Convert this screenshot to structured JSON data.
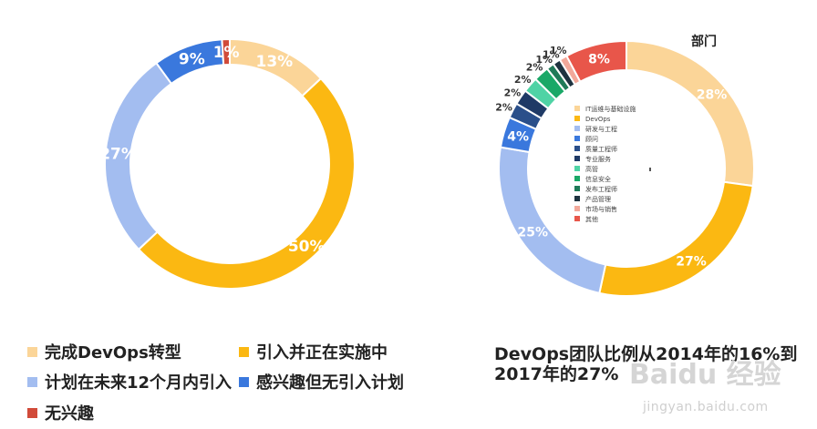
{
  "chart_data": [
    {
      "type": "pie",
      "donut": true,
      "categories": [
        "完成DevOps转型",
        "引入并正在实施中",
        "计划在未来12个月内引入",
        "感兴趣但无引入计划",
        "无兴趣"
      ],
      "values": [
        13,
        50,
        27,
        9,
        1
      ],
      "data_labels": [
        "13%",
        "50%",
        "27%",
        "9%",
        "1%"
      ],
      "colors": [
        "#fbd598",
        "#fbb812",
        "#a3bdf0",
        "#3a78dd",
        "#d14b3a"
      ],
      "legend_position": "bottom"
    },
    {
      "type": "pie",
      "donut": true,
      "title": "部门",
      "categories": [
        "IT运维与基础设施",
        "DevOps",
        "研发与工程",
        "顾问",
        "质量工程师",
        "专业服务",
        "高管",
        "信息安全",
        "发布工程师",
        "产品管理",
        "市场与销售",
        "其他"
      ],
      "values": [
        28,
        27,
        25,
        4,
        2,
        2,
        2,
        2,
        1,
        1,
        1,
        8
      ],
      "data_labels": [
        "28%",
        "27%",
        "25%",
        "4%",
        "2%",
        "2%",
        "2%",
        "2%",
        "1%",
        "1%",
        "1%",
        "8%"
      ],
      "colors": [
        "#fbd598",
        "#fbb812",
        "#a3bdf0",
        "#3a78dd",
        "#2a4f8a",
        "#1f3a66",
        "#4fd3a5",
        "#1aa867",
        "#1f7a58",
        "#1e3340",
        "#f2a89a",
        "#e8564a"
      ],
      "legend_position": "center"
    }
  ],
  "caption": {
    "line1": "DevOps团队比例从2014年的16%到",
    "line2": "2017年的27%"
  },
  "watermark": {
    "text": "Baidu 经验",
    "url": "jingyan.baidu.com"
  }
}
